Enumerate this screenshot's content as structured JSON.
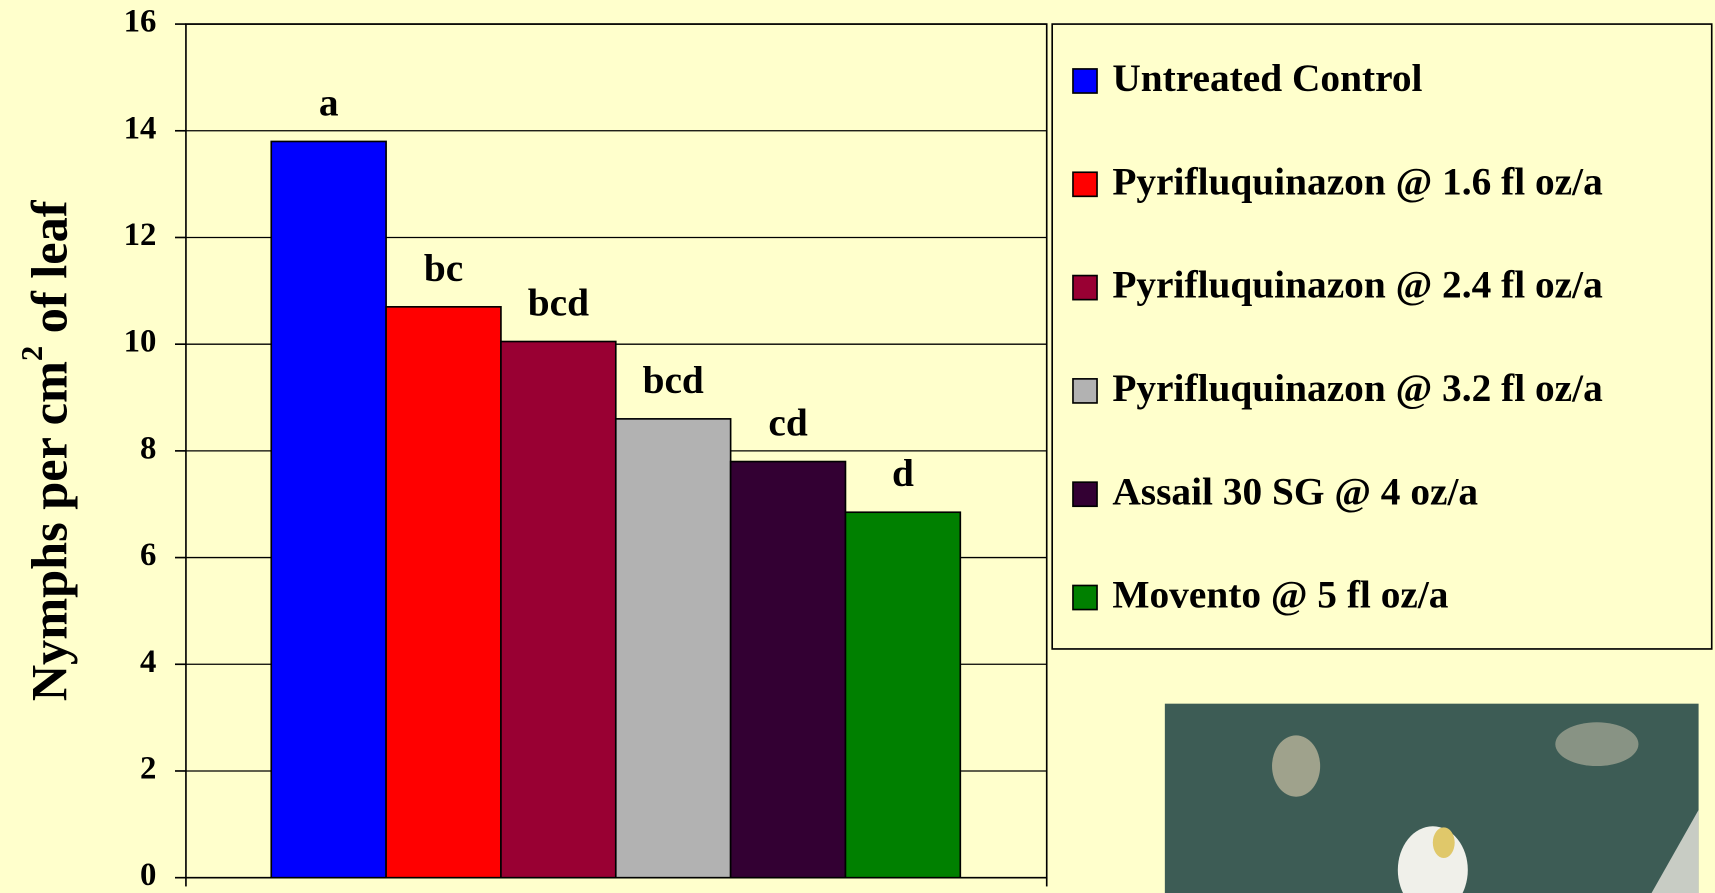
{
  "chart_data": {
    "type": "bar",
    "ylabel": [
      "Nymphs per cm",
      "2",
      " of leaf"
    ],
    "series": [
      {
        "name": "Untreated Control",
        "color": "#0000ff",
        "values": [
          13.8
        ]
      },
      {
        "name": "Pyrifluquinazon @ 1.6 fl oz/a",
        "color": "#ff0000",
        "values": [
          10.7
        ]
      },
      {
        "name": "Pyrifluquinazon @ 2.4 fl oz/a",
        "color": "#990033",
        "values": [
          10.05
        ]
      },
      {
        "name": "Pyrifluquinazon @ 3.2 fl oz/a",
        "color": "#b2b2b2",
        "values": [
          8.6
        ]
      },
      {
        "name": "Assail 30 SG @ 4 oz/a",
        "color": "#330033",
        "values": [
          7.8
        ]
      },
      {
        "name": "Movento @ 5 fl oz/a",
        "color": "#008000",
        "values": [
          6.85
        ]
      }
    ],
    "annotations": [
      "a",
      "bc",
      "bcd",
      "bcd",
      "cd",
      "d"
    ],
    "ylim": [
      0,
      16
    ],
    "yticks": [
      0,
      2,
      4,
      6,
      8,
      10,
      12,
      14,
      16
    ],
    "grid": true,
    "legend": "right"
  }
}
